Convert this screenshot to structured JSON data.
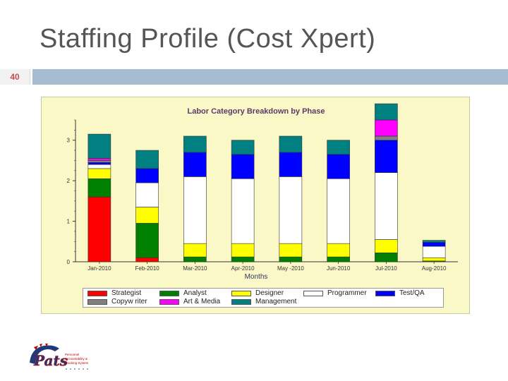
{
  "slide": {
    "title": "Staffing Profile (Cost Xpert)",
    "number": "40"
  },
  "logo": {
    "word": "Pats",
    "tagline": [
      "Personnel",
      "Accountability &",
      "Tracking System"
    ]
  },
  "chart_data": {
    "type": "bar",
    "stacked": true,
    "title": "Labor Category Breakdown by Phase",
    "xlabel": "Months",
    "ylabel": "",
    "ylim": [
      0,
      3.5
    ],
    "yticks": [
      0,
      1,
      2,
      3
    ],
    "grid": false,
    "legend_position": "bottom",
    "categories": [
      "Jan-2010",
      "Feb-2010",
      "Mar-2010",
      "Apr-2010",
      "May -2010",
      "Jun-2010",
      "Jul-2010",
      "Aug-2010"
    ],
    "series": [
      {
        "name": "Strategist",
        "color": "#ff0000",
        "values": [
          1.6,
          0.1,
          0,
          0,
          0,
          0,
          0,
          0
        ]
      },
      {
        "name": "Analyst",
        "color": "#008000",
        "values": [
          0.45,
          0.85,
          0.12,
          0.12,
          0.12,
          0.12,
          0.22,
          0.02
        ]
      },
      {
        "name": "Designer",
        "color": "#ffff00",
        "values": [
          0.25,
          0.4,
          0.33,
          0.33,
          0.33,
          0.33,
          0.33,
          0.08
        ]
      },
      {
        "name": "Programmer",
        "color": "#ffffff",
        "values": [
          0.1,
          0.6,
          1.65,
          1.6,
          1.65,
          1.6,
          1.65,
          0.28
        ]
      },
      {
        "name": "Test/QA",
        "color": "#0000ff",
        "values": [
          0.05,
          0.35,
          0.6,
          0.6,
          0.6,
          0.6,
          0.8,
          0.1
        ]
      },
      {
        "name": "Copyw riter",
        "color": "#808080",
        "values": [
          0.05,
          0,
          0,
          0,
          0,
          0,
          0.1,
          0
        ]
      },
      {
        "name": "Art & Media",
        "color": "#ff00ff",
        "values": [
          0.05,
          0,
          0,
          0,
          0,
          0,
          0.4,
          0
        ]
      },
      {
        "name": "Management",
        "color": "#008080",
        "values": [
          0.6,
          0.45,
          0.4,
          0.35,
          0.4,
          0.35,
          0.4,
          0.05
        ]
      }
    ]
  }
}
